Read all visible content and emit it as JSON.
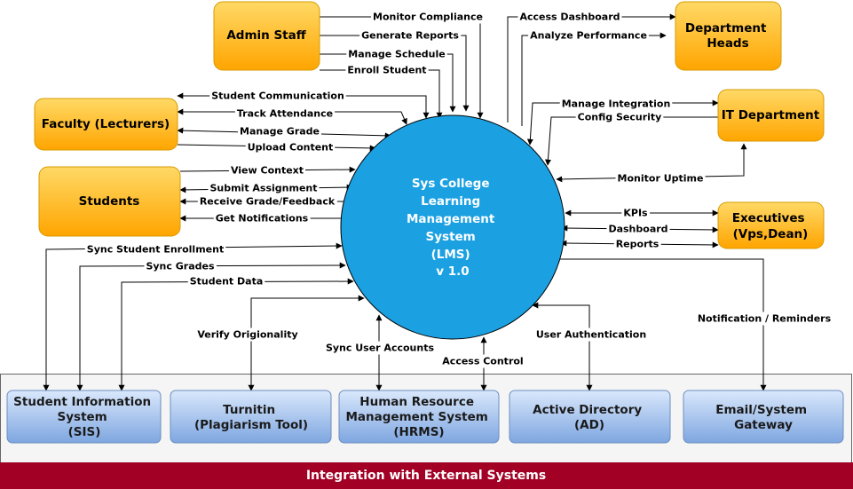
{
  "colors": {
    "actor_fill_top": "#ffd966",
    "actor_fill_bottom": "#ffa500",
    "actor_stroke": "#d79b00",
    "system_fill": "#1ba1e2",
    "system_stroke": "#000000",
    "external_fill_top": "#dae8fc",
    "external_fill_bottom": "#7ea6e0",
    "external_stroke": "#6c8ebf",
    "band_fill": "#f5f5f5",
    "footer_fill": "#a20025"
  },
  "system": {
    "lines": [
      "Sys College",
      "Learning",
      "Management",
      "System",
      "(LMS)",
      "v 1.0"
    ]
  },
  "actors": {
    "admin": {
      "lines": [
        "Admin Staff"
      ]
    },
    "dept": {
      "lines": [
        "Department",
        "Heads"
      ]
    },
    "faculty": {
      "lines": [
        "Faculty (Lecturers)"
      ]
    },
    "it": {
      "lines": [
        "IT Department"
      ]
    },
    "students": {
      "lines": [
        "Students"
      ]
    },
    "exec": {
      "lines": [
        "Executives",
        "(Vps,Dean)"
      ]
    }
  },
  "externals": {
    "sis": {
      "lines": [
        "Student Information",
        "System",
        "(SIS)"
      ]
    },
    "turnitin": {
      "lines": [
        "Turnitin",
        "(Plagiarism Tool)"
      ]
    },
    "hrms": {
      "lines": [
        "Human Resource",
        "Management System",
        "(HRMS)"
      ]
    },
    "ad": {
      "lines": [
        "Active Directory",
        "(AD)"
      ]
    },
    "email": {
      "lines": [
        "Email/System",
        "Gateway"
      ]
    }
  },
  "footer": {
    "title": "Integration with External Systems"
  },
  "flows": {
    "monitor_compliance": "Monitor Compliance",
    "generate_reports": "Generate Reports",
    "manage_schedule": "Manage Schedule",
    "enroll_student": "Enroll Student",
    "access_dashboard": "Access Dashboard",
    "analyze_performance": "Analyze Performance",
    "student_communication": "Student Communication",
    "track_attendance": "Track Attendance",
    "manage_grade": "Manage Grade",
    "upload_content": "Upload Content",
    "manage_integration": "Manage Integration",
    "config_security": "Config Security",
    "view_context": "View Context",
    "submit_assignment": "Submit Assignment",
    "receive_grade": "Receive Grade/Feedback",
    "get_notifications": "Get Notifications",
    "monitor_uptime": "Monitor Uptime",
    "kpis": "KPIs",
    "dashboard": "Dashboard",
    "reports": "Reports",
    "sync_enrollment": "Sync Student Enrollment",
    "sync_grades": "Sync Grades",
    "student_data": "Student Data",
    "verify_originality": "Verify Origionality",
    "sync_user_accounts": "Sync User Accounts",
    "access_control": "Access Control",
    "user_authentication": "User Authentication",
    "notification_reminders": "Notification / Reminders"
  }
}
